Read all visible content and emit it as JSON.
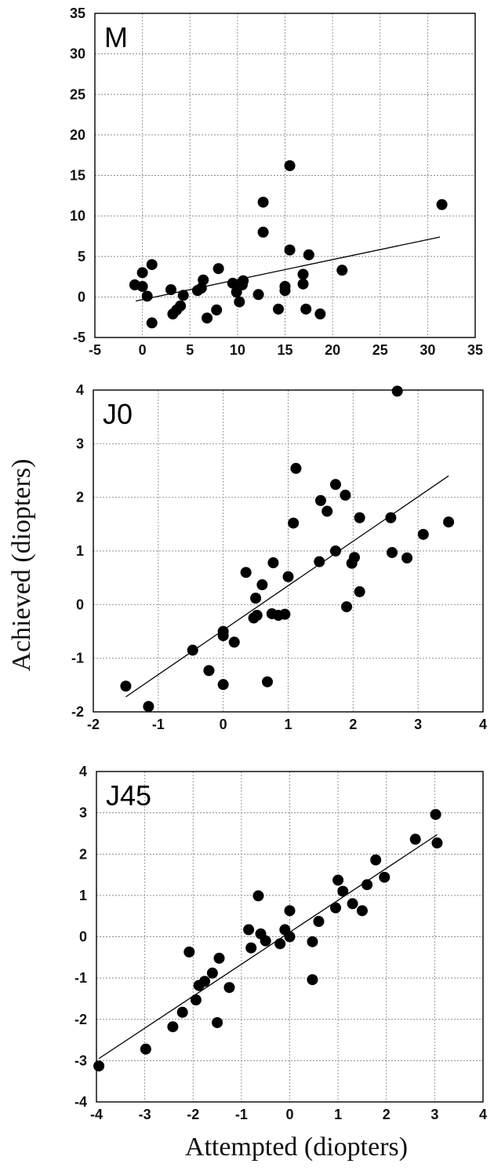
{
  "axes": {
    "xlabel": "Attempted (diopters)",
    "ylabel": "Achieved (diopters)"
  },
  "chart_data": [
    {
      "type": "scatter",
      "label": "M",
      "xlim": [
        -5,
        35
      ],
      "ylim": [
        -5,
        35
      ],
      "xticks": [
        -5,
        0,
        5,
        10,
        15,
        20,
        25,
        30,
        35
      ],
      "yticks": [
        -5,
        0,
        5,
        10,
        15,
        20,
        25,
        30,
        35
      ],
      "grid": true,
      "marker_color": "#000000",
      "points": [
        [
          -0.8,
          1.5
        ],
        [
          0.0,
          3.0
        ],
        [
          0.0,
          1.3
        ],
        [
          0.5,
          0.1
        ],
        [
          1.0,
          4.0
        ],
        [
          1.0,
          -3.2
        ],
        [
          3.0,
          0.9
        ],
        [
          3.2,
          -2.1
        ],
        [
          3.6,
          -1.6
        ],
        [
          4.0,
          -1.1
        ],
        [
          4.3,
          0.2
        ],
        [
          5.8,
          0.8
        ],
        [
          6.2,
          1.1
        ],
        [
          6.4,
          2.1
        ],
        [
          6.8,
          -2.6
        ],
        [
          7.8,
          -1.6
        ],
        [
          8.0,
          3.5
        ],
        [
          9.5,
          1.7
        ],
        [
          9.9,
          0.6
        ],
        [
          10.2,
          -0.6
        ],
        [
          10.5,
          1.5
        ],
        [
          10.6,
          2.0
        ],
        [
          12.2,
          0.3
        ],
        [
          12.7,
          11.7
        ],
        [
          12.7,
          8.0
        ],
        [
          14.3,
          -1.5
        ],
        [
          15.0,
          1.3
        ],
        [
          15.0,
          0.8
        ],
        [
          15.5,
          16.2
        ],
        [
          15.5,
          5.8
        ],
        [
          16.9,
          1.6
        ],
        [
          16.9,
          2.8
        ],
        [
          17.2,
          -1.5
        ],
        [
          17.5,
          5.2
        ],
        [
          18.7,
          -2.1
        ],
        [
          21.0,
          3.3
        ],
        [
          31.5,
          11.4
        ]
      ],
      "fit": {
        "x": [
          -0.7,
          31.3
        ],
        "y": [
          -0.5,
          7.4
        ]
      }
    },
    {
      "type": "scatter",
      "label": "J0",
      "xlim": [
        -2,
        4
      ],
      "ylim": [
        -2,
        4
      ],
      "xticks": [
        -2,
        -1,
        0,
        1,
        2,
        3,
        4
      ],
      "yticks": [
        -2,
        -1,
        0,
        1,
        2,
        3,
        4
      ],
      "grid": true,
      "marker_color": "#000000",
      "points": [
        [
          -1.5,
          -1.52
        ],
        [
          -1.15,
          -1.9
        ],
        [
          -0.47,
          -0.85
        ],
        [
          -0.22,
          -1.23
        ],
        [
          0.0,
          -0.5
        ],
        [
          0.0,
          -0.58
        ],
        [
          0.0,
          -1.49
        ],
        [
          0.17,
          -0.7
        ],
        [
          0.35,
          0.6
        ],
        [
          0.47,
          -0.25
        ],
        [
          0.5,
          0.12
        ],
        [
          0.52,
          -0.2
        ],
        [
          0.6,
          0.37
        ],
        [
          0.68,
          -1.44
        ],
        [
          0.75,
          -0.17
        ],
        [
          0.77,
          0.78
        ],
        [
          0.85,
          -0.2
        ],
        [
          0.95,
          -0.18
        ],
        [
          1.0,
          0.52
        ],
        [
          1.08,
          1.52
        ],
        [
          1.12,
          2.54
        ],
        [
          1.48,
          0.8
        ],
        [
          1.5,
          1.94
        ],
        [
          1.6,
          1.74
        ],
        [
          1.73,
          1.0
        ],
        [
          1.73,
          2.24
        ],
        [
          1.88,
          2.04
        ],
        [
          1.9,
          -0.04
        ],
        [
          1.98,
          0.77
        ],
        [
          2.02,
          0.88
        ],
        [
          2.1,
          1.62
        ],
        [
          2.1,
          0.24
        ],
        [
          2.58,
          1.62
        ],
        [
          2.6,
          0.97
        ],
        [
          2.68,
          3.98
        ],
        [
          2.83,
          0.87
        ],
        [
          3.08,
          1.31
        ],
        [
          3.47,
          1.54
        ]
      ],
      "fit": {
        "x": [
          -1.5,
          3.47
        ],
        "y": [
          -1.72,
          2.4
        ]
      }
    },
    {
      "type": "scatter",
      "label": "J45",
      "xlim": [
        -4,
        4
      ],
      "ylim": [
        -4,
        4
      ],
      "xticks": [
        -4,
        -3,
        -2,
        -1,
        0,
        1,
        2,
        3,
        4
      ],
      "yticks": [
        -4,
        -3,
        -2,
        -1,
        0,
        1,
        2,
        3,
        4
      ],
      "grid": true,
      "marker_color": "#000000",
      "points": [
        [
          -3.95,
          -3.13
        ],
        [
          -2.98,
          -2.72
        ],
        [
          -2.42,
          -2.18
        ],
        [
          -2.22,
          -1.83
        ],
        [
          -2.08,
          -0.37
        ],
        [
          -1.94,
          -1.53
        ],
        [
          -1.88,
          -1.18
        ],
        [
          -1.76,
          -1.08
        ],
        [
          -1.6,
          -0.88
        ],
        [
          -1.5,
          -2.08
        ],
        [
          -1.46,
          -0.52
        ],
        [
          -1.25,
          -1.23
        ],
        [
          -0.85,
          0.17
        ],
        [
          -0.8,
          -0.27
        ],
        [
          -0.65,
          0.99
        ],
        [
          -0.6,
          0.07
        ],
        [
          -0.5,
          -0.1
        ],
        [
          -0.2,
          -0.17
        ],
        [
          -0.1,
          0.17
        ],
        [
          0.0,
          0.63
        ],
        [
          0.0,
          0.0
        ],
        [
          0.47,
          -0.12
        ],
        [
          0.47,
          -1.04
        ],
        [
          0.6,
          0.37
        ],
        [
          0.95,
          0.7
        ],
        [
          1.0,
          1.37
        ],
        [
          1.1,
          1.1
        ],
        [
          1.3,
          0.8
        ],
        [
          1.5,
          0.63
        ],
        [
          1.6,
          1.26
        ],
        [
          1.78,
          1.86
        ],
        [
          1.96,
          1.44
        ],
        [
          2.6,
          2.36
        ],
        [
          3.02,
          2.96
        ],
        [
          3.05,
          2.27
        ]
      ],
      "fit": {
        "x": [
          -3.95,
          3.05
        ],
        "y": [
          -2.95,
          2.47
        ]
      }
    }
  ]
}
